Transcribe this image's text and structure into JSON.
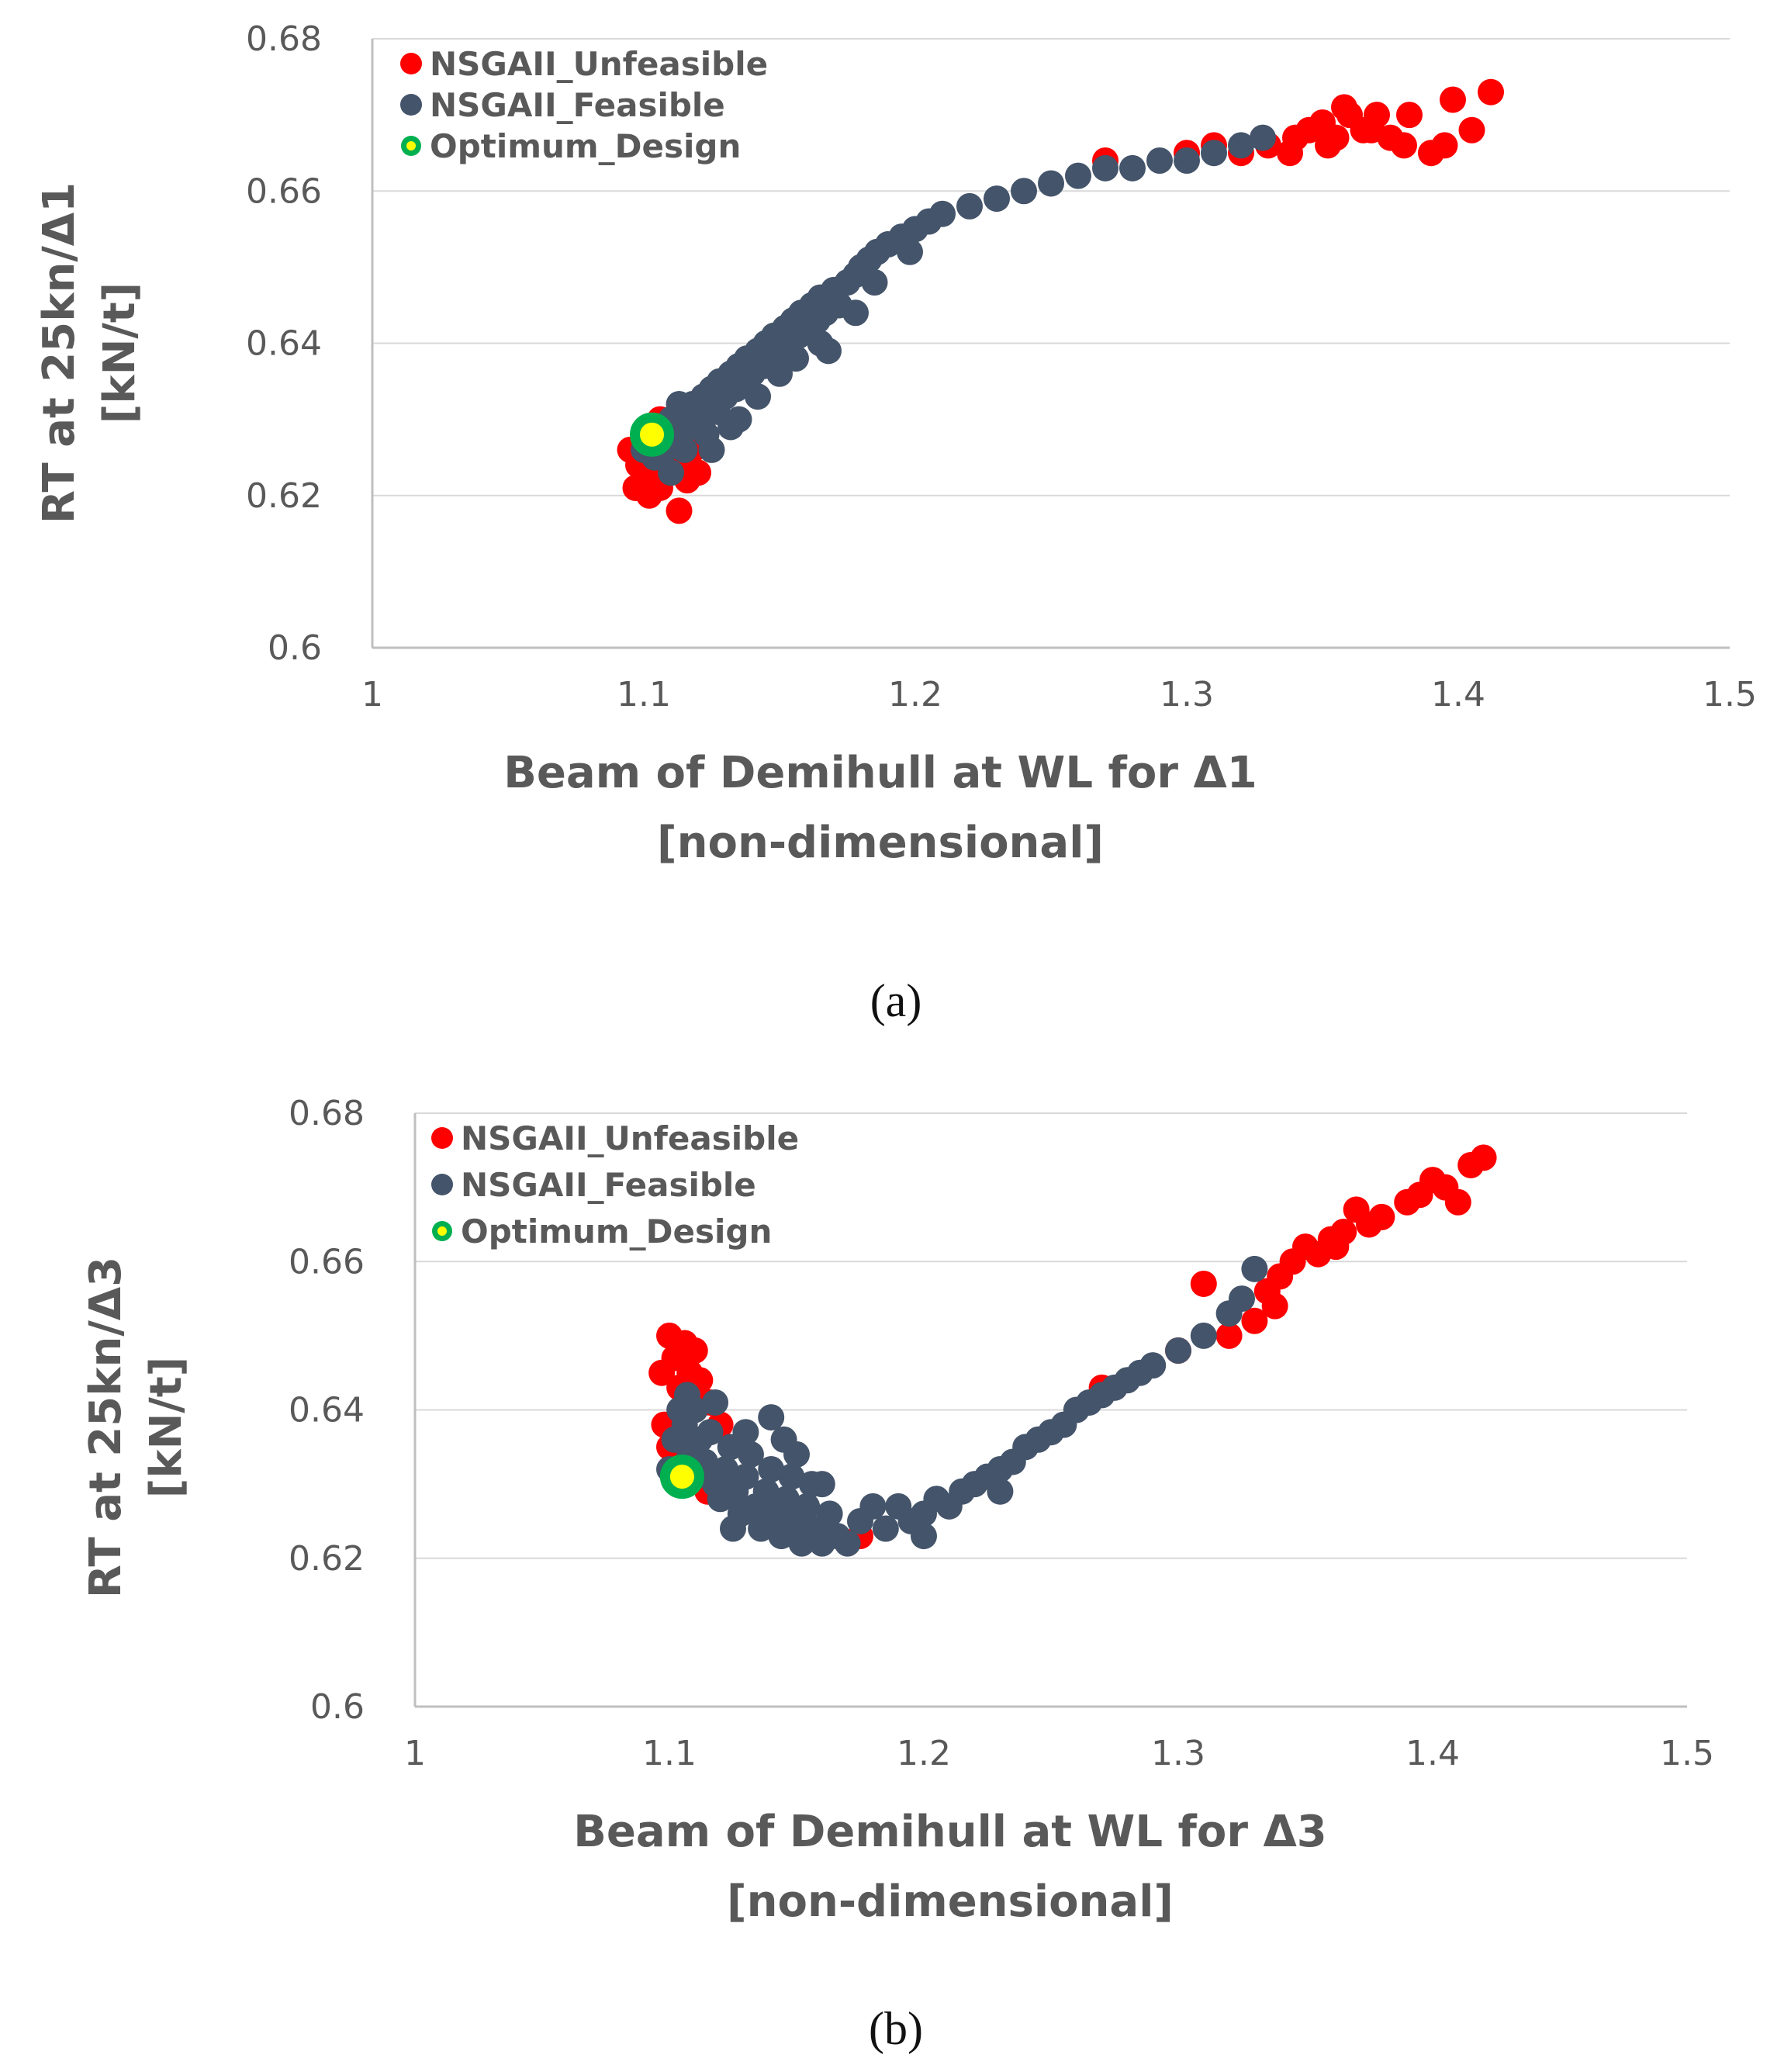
{
  "colors": {
    "unfeasible": "#ff0000",
    "feasible": "#44546a",
    "optimum_fill": "#ffff00",
    "optimum_ring": "#00b050",
    "grid": "#d9d9d9",
    "axis": "#bfbfbf",
    "text": "#595959"
  },
  "chart_data": [
    {
      "type": "scatter",
      "panel": "a",
      "caption": "(a)",
      "xlabel_lines": [
        "Beam of Demihull at WL for Δ1",
        "[non-dimensional]"
      ],
      "ylabel_lines": [
        "RT at 25kn/Δ1",
        "[kN/t]"
      ],
      "xlim": [
        1,
        1.5
      ],
      "ylim": [
        0.6,
        0.68
      ],
      "xticks": [
        "1",
        "1.1",
        "1.2",
        "1.3",
        "1.4",
        "1.5"
      ],
      "yticks": [
        "0.6",
        "0.62",
        "0.64",
        "0.66",
        "0.68"
      ],
      "grid": "horizontal",
      "legend_position": "top-left",
      "series": [
        {
          "name": "NSGAII_Unfeasible",
          "color_key": "unfeasible",
          "points": [
            [
              1.095,
              0.626
            ],
            [
              1.098,
              0.624
            ],
            [
              1.1,
              0.622
            ],
            [
              1.102,
              0.62
            ],
            [
              1.104,
              0.625
            ],
            [
              1.106,
              0.621
            ],
            [
              1.108,
              0.623
            ],
            [
              1.11,
              0.627
            ],
            [
              1.112,
              0.624
            ],
            [
              1.113,
              0.618
            ],
            [
              1.116,
              0.622
            ],
            [
              1.12,
              0.623
            ],
            [
              1.106,
              0.63
            ],
            [
              1.11,
              0.629
            ],
            [
              1.097,
              0.621
            ],
            [
              1.118,
              0.626
            ],
            [
              1.27,
              0.664
            ],
            [
              1.3,
              0.665
            ],
            [
              1.31,
              0.666
            ],
            [
              1.32,
              0.665
            ],
            [
              1.33,
              0.666
            ],
            [
              1.34,
              0.667
            ],
            [
              1.345,
              0.668
            ],
            [
              1.35,
              0.669
            ],
            [
              1.355,
              0.667
            ],
            [
              1.36,
              0.67
            ],
            [
              1.365,
              0.668
            ],
            [
              1.37,
              0.67
            ],
            [
              1.375,
              0.667
            ],
            [
              1.38,
              0.666
            ],
            [
              1.382,
              0.67
            ],
            [
              1.39,
              0.665
            ],
            [
              1.395,
              0.666
            ],
            [
              1.398,
              0.672
            ],
            [
              1.405,
              0.668
            ],
            [
              1.412,
              0.673
            ],
            [
              1.338,
              0.665
            ],
            [
              1.352,
              0.666
            ],
            [
              1.368,
              0.668
            ],
            [
              1.358,
              0.671
            ]
          ]
        },
        {
          "name": "NSGAII_Feasible",
          "color_key": "feasible",
          "points": [
            [
              1.1,
              0.626
            ],
            [
              1.102,
              0.628
            ],
            [
              1.104,
              0.625
            ],
            [
              1.105,
              0.627
            ],
            [
              1.106,
              0.629
            ],
            [
              1.108,
              0.626
            ],
            [
              1.11,
              0.63
            ],
            [
              1.112,
              0.628
            ],
            [
              1.114,
              0.631
            ],
            [
              1.115,
              0.626
            ],
            [
              1.117,
              0.629
            ],
            [
              1.118,
              0.632
            ],
            [
              1.12,
              0.63
            ],
            [
              1.122,
              0.633
            ],
            [
              1.123,
              0.628
            ],
            [
              1.125,
              0.634
            ],
            [
              1.127,
              0.631
            ],
            [
              1.128,
              0.635
            ],
            [
              1.13,
              0.633
            ],
            [
              1.132,
              0.636
            ],
            [
              1.134,
              0.634
            ],
            [
              1.135,
              0.637
            ],
            [
              1.137,
              0.635
            ],
            [
              1.138,
              0.638
            ],
            [
              1.14,
              0.636
            ],
            [
              1.142,
              0.639
            ],
            [
              1.144,
              0.637
            ],
            [
              1.145,
              0.64
            ],
            [
              1.147,
              0.638
            ],
            [
              1.148,
              0.641
            ],
            [
              1.15,
              0.639
            ],
            [
              1.152,
              0.642
            ],
            [
              1.154,
              0.64
            ],
            [
              1.155,
              0.643
            ],
            [
              1.157,
              0.641
            ],
            [
              1.158,
              0.644
            ],
            [
              1.16,
              0.642
            ],
            [
              1.162,
              0.645
            ],
            [
              1.164,
              0.643
            ],
            [
              1.165,
              0.646
            ],
            [
              1.167,
              0.644
            ],
            [
              1.17,
              0.647
            ],
            [
              1.172,
              0.645
            ],
            [
              1.175,
              0.648
            ],
            [
              1.178,
              0.649
            ],
            [
              1.18,
              0.65
            ],
            [
              1.183,
              0.651
            ],
            [
              1.186,
              0.652
            ],
            [
              1.19,
              0.653
            ],
            [
              1.195,
              0.654
            ],
            [
              1.2,
              0.655
            ],
            [
              1.205,
              0.656
            ],
            [
              1.21,
              0.657
            ],
            [
              1.22,
              0.658
            ],
            [
              1.23,
              0.659
            ],
            [
              1.24,
              0.66
            ],
            [
              1.25,
              0.661
            ],
            [
              1.26,
              0.662
            ],
            [
              1.27,
              0.663
            ],
            [
              1.28,
              0.663
            ],
            [
              1.29,
              0.664
            ],
            [
              1.3,
              0.664
            ],
            [
              1.31,
              0.665
            ],
            [
              1.32,
              0.666
            ],
            [
              1.328,
              0.667
            ],
            [
              1.11,
              0.623
            ],
            [
              1.125,
              0.626
            ],
            [
              1.135,
              0.63
            ],
            [
              1.15,
              0.636
            ],
            [
              1.165,
              0.64
            ],
            [
              1.178,
              0.644
            ],
            [
              1.113,
              0.632
            ],
            [
              1.132,
              0.629
            ],
            [
              1.142,
              0.633
            ],
            [
              1.156,
              0.638
            ],
            [
              1.168,
              0.639
            ],
            [
              1.185,
              0.648
            ],
            [
              1.198,
              0.652
            ]
          ]
        },
        {
          "name": "Optimum_Design",
          "color_key": "optimum",
          "points": [
            [
              1.103,
              0.628
            ]
          ]
        }
      ]
    },
    {
      "type": "scatter",
      "panel": "b",
      "caption": "(b)",
      "xlabel_lines": [
        "Beam of Demihull at WL for Δ3",
        "[non-dimensional]"
      ],
      "ylabel_lines": [
        "RT at 25kn/Δ3",
        "[kN/t]"
      ],
      "xlim": [
        1,
        1.5
      ],
      "ylim": [
        0.6,
        0.68
      ],
      "xticks": [
        "1",
        "1.1",
        "1.2",
        "1.3",
        "1.4",
        "1.5"
      ],
      "yticks": [
        "0.6",
        "0.62",
        "0.64",
        "0.66",
        "0.68"
      ],
      "grid": "horizontal",
      "legend_position": "top-left",
      "series": [
        {
          "name": "NSGAII_Unfeasible",
          "color_key": "unfeasible",
          "points": [
            [
              1.097,
              0.645
            ],
            [
              1.1,
              0.65
            ],
            [
              1.102,
              0.647
            ],
            [
              1.104,
              0.643
            ],
            [
              1.106,
              0.649
            ],
            [
              1.108,
              0.645
            ],
            [
              1.11,
              0.648
            ],
            [
              1.112,
              0.644
            ],
            [
              1.098,
              0.638
            ],
            [
              1.1,
              0.635
            ],
            [
              1.116,
              0.641
            ],
            [
              1.12,
              0.638
            ],
            [
              1.105,
              0.63
            ],
            [
              1.115,
              0.629
            ],
            [
              1.16,
              0.624
            ],
            [
              1.175,
              0.623
            ],
            [
              1.27,
              0.643
            ],
            [
              1.3,
              0.648
            ],
            [
              1.31,
              0.657
            ],
            [
              1.32,
              0.65
            ],
            [
              1.33,
              0.652
            ],
            [
              1.335,
              0.656
            ],
            [
              1.34,
              0.658
            ],
            [
              1.345,
              0.66
            ],
            [
              1.35,
              0.662
            ],
            [
              1.355,
              0.661
            ],
            [
              1.36,
              0.663
            ],
            [
              1.365,
              0.664
            ],
            [
              1.37,
              0.667
            ],
            [
              1.375,
              0.665
            ],
            [
              1.38,
              0.666
            ],
            [
              1.39,
              0.668
            ],
            [
              1.395,
              0.669
            ],
            [
              1.4,
              0.671
            ],
            [
              1.405,
              0.67
            ],
            [
              1.41,
              0.668
            ],
            [
              1.415,
              0.673
            ],
            [
              1.42,
              0.674
            ],
            [
              1.338,
              0.654
            ],
            [
              1.362,
              0.662
            ]
          ]
        },
        {
          "name": "NSGAII_Feasible",
          "color_key": "feasible",
          "points": [
            [
              1.1,
              0.632
            ],
            [
              1.102,
              0.636
            ],
            [
              1.104,
              0.64
            ],
            [
              1.106,
              0.638
            ],
            [
              1.108,
              0.634
            ],
            [
              1.11,
              0.631
            ],
            [
              1.112,
              0.636
            ],
            [
              1.114,
              0.633
            ],
            [
              1.116,
              0.637
            ],
            [
              1.118,
              0.63
            ],
            [
              1.12,
              0.628
            ],
            [
              1.122,
              0.632
            ],
            [
              1.124,
              0.635
            ],
            [
              1.126,
              0.629
            ],
            [
              1.128,
              0.626
            ],
            [
              1.13,
              0.631
            ],
            [
              1.132,
              0.634
            ],
            [
              1.134,
              0.627
            ],
            [
              1.136,
              0.624
            ],
            [
              1.138,
              0.629
            ],
            [
              1.14,
              0.632
            ],
            [
              1.142,
              0.626
            ],
            [
              1.144,
              0.623
            ],
            [
              1.146,
              0.628
            ],
            [
              1.148,
              0.631
            ],
            [
              1.15,
              0.625
            ],
            [
              1.152,
              0.622
            ],
            [
              1.154,
              0.627
            ],
            [
              1.156,
              0.63
            ],
            [
              1.158,
              0.624
            ],
            [
              1.16,
              0.622
            ],
            [
              1.163,
              0.626
            ],
            [
              1.166,
              0.623
            ],
            [
              1.17,
              0.622
            ],
            [
              1.175,
              0.625
            ],
            [
              1.18,
              0.627
            ],
            [
              1.185,
              0.624
            ],
            [
              1.19,
              0.627
            ],
            [
              1.195,
              0.625
            ],
            [
              1.2,
              0.626
            ],
            [
              1.205,
              0.628
            ],
            [
              1.21,
              0.627
            ],
            [
              1.215,
              0.629
            ],
            [
              1.22,
              0.63
            ],
            [
              1.225,
              0.631
            ],
            [
              1.23,
              0.632
            ],
            [
              1.235,
              0.633
            ],
            [
              1.24,
              0.635
            ],
            [
              1.245,
              0.636
            ],
            [
              1.25,
              0.637
            ],
            [
              1.255,
              0.638
            ],
            [
              1.26,
              0.64
            ],
            [
              1.265,
              0.641
            ],
            [
              1.27,
              0.642
            ],
            [
              1.275,
              0.643
            ],
            [
              1.28,
              0.644
            ],
            [
              1.29,
              0.646
            ],
            [
              1.3,
              0.648
            ],
            [
              1.31,
              0.65
            ],
            [
              1.32,
              0.653
            ],
            [
              1.325,
              0.655
            ],
            [
              1.33,
              0.659
            ],
            [
              1.11,
              0.64
            ],
            [
              1.13,
              0.637
            ],
            [
              1.15,
              0.634
            ],
            [
              1.16,
              0.63
            ],
            [
              1.14,
              0.639
            ],
            [
              1.107,
              0.642
            ],
            [
              1.125,
              0.624
            ],
            [
              1.2,
              0.623
            ],
            [
              1.23,
              0.629
            ],
            [
              1.285,
              0.645
            ],
            [
              1.118,
              0.641
            ],
            [
              1.145,
              0.636
            ]
          ]
        },
        {
          "name": "Optimum_Design",
          "color_key": "optimum",
          "points": [
            [
              1.105,
              0.631
            ]
          ]
        }
      ]
    }
  ]
}
